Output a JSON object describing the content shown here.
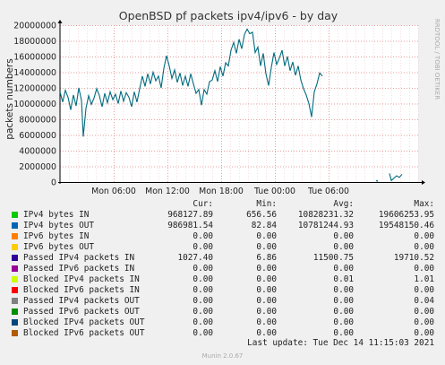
{
  "chart_data": {
    "type": "line",
    "title": "OpenBSD pf packets ipv4/ipv6 - by day",
    "ylabel": "packets numbers",
    "right_label": "RRDTOOL / TOBI OETIKER",
    "ylim": [
      0,
      20000000
    ],
    "yticks": [
      "0",
      "2000000",
      "4000000",
      "6000000",
      "8000000",
      "10000000",
      "12000000",
      "14000000",
      "16000000",
      "18000000",
      "20000000"
    ],
    "xticks": [
      "Mon 06:00",
      "Mon 12:00",
      "Mon 18:00",
      "Tue 00:00",
      "Tue 06:00"
    ],
    "grid": true,
    "series": [
      {
        "name": "Passed IPv4 packets IN",
        "color": "#006b7f",
        "segments": [
          [
            [
              0,
              11500000
            ],
            [
              0.3,
              10200000
            ],
            [
              0.6,
              11700000
            ],
            [
              0.9,
              10800000
            ],
            [
              1.2,
              9200000
            ],
            [
              1.5,
              11100000
            ],
            [
              1.8,
              9700000
            ],
            [
              2.1,
              12000000
            ],
            [
              2.4,
              10400000
            ],
            [
              2.6,
              5800000
            ],
            [
              2.9,
              9400000
            ],
            [
              3.2,
              11000000
            ],
            [
              3.5,
              9900000
            ],
            [
              3.8,
              10700000
            ],
            [
              4.1,
              11900000
            ],
            [
              4.4,
              11000000
            ],
            [
              4.7,
              9600000
            ],
            [
              5.0,
              11300000
            ],
            [
              5.3,
              10100000
            ],
            [
              5.6,
              11500000
            ],
            [
              5.9,
              10500000
            ],
            [
              6.2,
              11200000
            ],
            [
              6.5,
              10000000
            ],
            [
              6.8,
              11600000
            ],
            [
              7.1,
              10300000
            ],
            [
              7.4,
              11400000
            ],
            [
              7.7,
              10800000
            ],
            [
              8.0,
              9600000
            ],
            [
              8.3,
              11500000
            ],
            [
              8.6,
              10200000
            ],
            [
              8.9,
              11900000
            ],
            [
              9.2,
              13500000
            ],
            [
              9.5,
              12200000
            ],
            [
              9.8,
              13800000
            ],
            [
              10.1,
              12500000
            ],
            [
              10.4,
              14000000
            ],
            [
              10.7,
              12900000
            ],
            [
              11.0,
              13500000
            ],
            [
              11.3,
              12000000
            ],
            [
              11.6,
              14500000
            ],
            [
              11.9,
              16100000
            ],
            [
              12.2,
              14800000
            ],
            [
              12.5,
              13200000
            ],
            [
              12.8,
              14300000
            ],
            [
              13.1,
              12700000
            ],
            [
              13.4,
              13900000
            ],
            [
              13.7,
              12300000
            ],
            [
              14.0,
              13500000
            ],
            [
              14.3,
              12200000
            ],
            [
              14.6,
              13800000
            ],
            [
              14.9,
              12500000
            ],
            [
              15.2,
              11300000
            ],
            [
              15.5,
              11800000
            ],
            [
              15.8,
              9800000
            ],
            [
              16.1,
              11800000
            ],
            [
              16.4,
              11200000
            ],
            [
              16.7,
              12800000
            ],
            [
              17.0,
              13000000
            ],
            [
              17.3,
              14200000
            ],
            [
              17.6,
              12800000
            ],
            [
              17.9,
              14700000
            ],
            [
              18.2,
              13500000
            ],
            [
              18.5,
              15200000
            ],
            [
              18.8,
              14800000
            ],
            [
              19.1,
              16800000
            ],
            [
              19.4,
              17800000
            ],
            [
              19.7,
              16400000
            ],
            [
              20.0,
              18200000
            ],
            [
              20.3,
              17000000
            ],
            [
              20.6,
              18800000
            ],
            [
              20.9,
              19500000
            ],
            [
              21.2,
              18900000
            ],
            [
              21.5,
              19100000
            ],
            [
              21.8,
              16500000
            ],
            [
              22.1,
              17200000
            ],
            [
              22.4,
              14800000
            ],
            [
              22.7,
              16400000
            ],
            [
              23.0,
              13800000
            ],
            [
              23.3,
              12300000
            ],
            [
              23.6,
              14600000
            ],
            [
              23.9,
              16500000
            ],
            [
              24.2,
              15000000
            ],
            [
              24.5,
              15800000
            ],
            [
              24.8,
              16800000
            ],
            [
              25.1,
              14800000
            ],
            [
              25.4,
              16000000
            ],
            [
              25.7,
              14200000
            ],
            [
              26.0,
              15300000
            ],
            [
              26.3,
              13600000
            ],
            [
              26.6,
              14800000
            ],
            [
              26.9,
              13000000
            ],
            [
              27.2,
              11900000
            ],
            [
              27.5,
              11100000
            ],
            [
              27.8,
              10000000
            ],
            [
              28.1,
              8300000
            ],
            [
              28.4,
              11500000
            ],
            [
              28.7,
              12500000
            ],
            [
              29.0,
              13900000
            ],
            [
              29.3,
              13500000
            ]
          ],
          [
            [
              35.3,
              100000
            ],
            [
              35.4,
              200000
            ],
            [
              35.5,
              50000
            ]
          ],
          [
            [
              36.8,
              1100000
            ],
            [
              37.0,
              200000
            ],
            [
              37.3,
              500000
            ],
            [
              37.6,
              800000
            ],
            [
              37.9,
              600000
            ],
            [
              38.2,
              1000000
            ]
          ]
        ]
      }
    ]
  },
  "legend": {
    "headers": {
      "cur": "Cur:",
      "min": "Min:",
      "avg": "Avg:",
      "max": "Max:"
    },
    "items": [
      {
        "name": "IPv4 bytes IN",
        "color": "#00cc00",
        "cur": "968127.89",
        "min": "656.56",
        "avg": "10828231.32",
        "max": "19606253.95"
      },
      {
        "name": "IPv4 bytes OUT",
        "color": "#0066b3",
        "cur": "986981.54",
        "min": "82.84",
        "avg": "10781244.93",
        "max": "19548150.46"
      },
      {
        "name": "IPv6 bytes IN",
        "color": "#ff8000",
        "cur": "0.00",
        "min": "0.00",
        "avg": "0.00",
        "max": "0.00"
      },
      {
        "name": "IPv6 bytes OUT",
        "color": "#ffcc00",
        "cur": "0.00",
        "min": "0.00",
        "avg": "0.00",
        "max": "0.00"
      },
      {
        "name": "Passed IPv4 packets IN",
        "color": "#330099",
        "cur": "1027.40",
        "min": "6.86",
        "avg": "11500.75",
        "max": "19710.52"
      },
      {
        "name": "Passed IPv6 packets IN",
        "color": "#990099",
        "cur": "0.00",
        "min": "0.00",
        "avg": "0.00",
        "max": "0.00"
      },
      {
        "name": "Blocked IPv4 packets IN",
        "color": "#ccff00",
        "cur": "0.00",
        "min": "0.00",
        "avg": "0.01",
        "max": "1.01"
      },
      {
        "name": "Blocked IPv6 packets IN",
        "color": "#ff0000",
        "cur": "0.00",
        "min": "0.00",
        "avg": "0.00",
        "max": "0.00"
      },
      {
        "name": "Passed IPv4 packets OUT",
        "color": "#808080",
        "cur": "0.00",
        "min": "0.00",
        "avg": "0.00",
        "max": "0.04"
      },
      {
        "name": "Passed IPv6 packets OUT",
        "color": "#008f00",
        "cur": "0.00",
        "min": "0.00",
        "avg": "0.00",
        "max": "0.00"
      },
      {
        "name": "Blocked IPv4 packets OUT",
        "color": "#00487d",
        "cur": "0.00",
        "min": "0.00",
        "avg": "0.00",
        "max": "0.00"
      },
      {
        "name": "Blocked IPv6 packets OUT",
        "color": "#b35a00",
        "cur": "0.00",
        "min": "0.00",
        "avg": "0.00",
        "max": "0.00"
      }
    ]
  },
  "last_update": "Last update: Tue Dec 14 11:15:03 2021",
  "footer": "Munin 2.0.67"
}
